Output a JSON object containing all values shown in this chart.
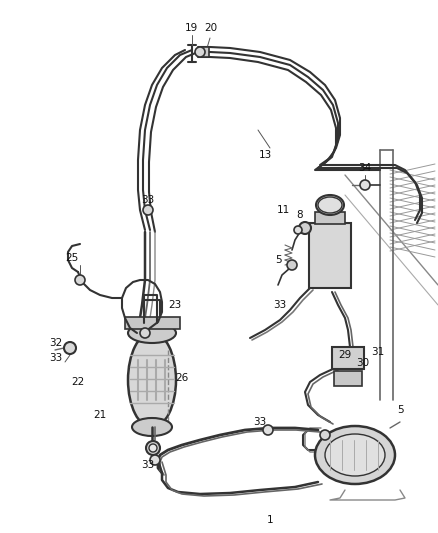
{
  "bg_color": "#ffffff",
  "line_color": "#444444",
  "label_color": "#111111",
  "figsize": [
    4.38,
    5.33
  ],
  "dpi": 100,
  "main_line_color": "#333333",
  "secondary_line_color": "#666666",
  "part_fill": "#e8e8e8",
  "drier_fill": "#d0d0d0",
  "hatch_color": "#888888"
}
